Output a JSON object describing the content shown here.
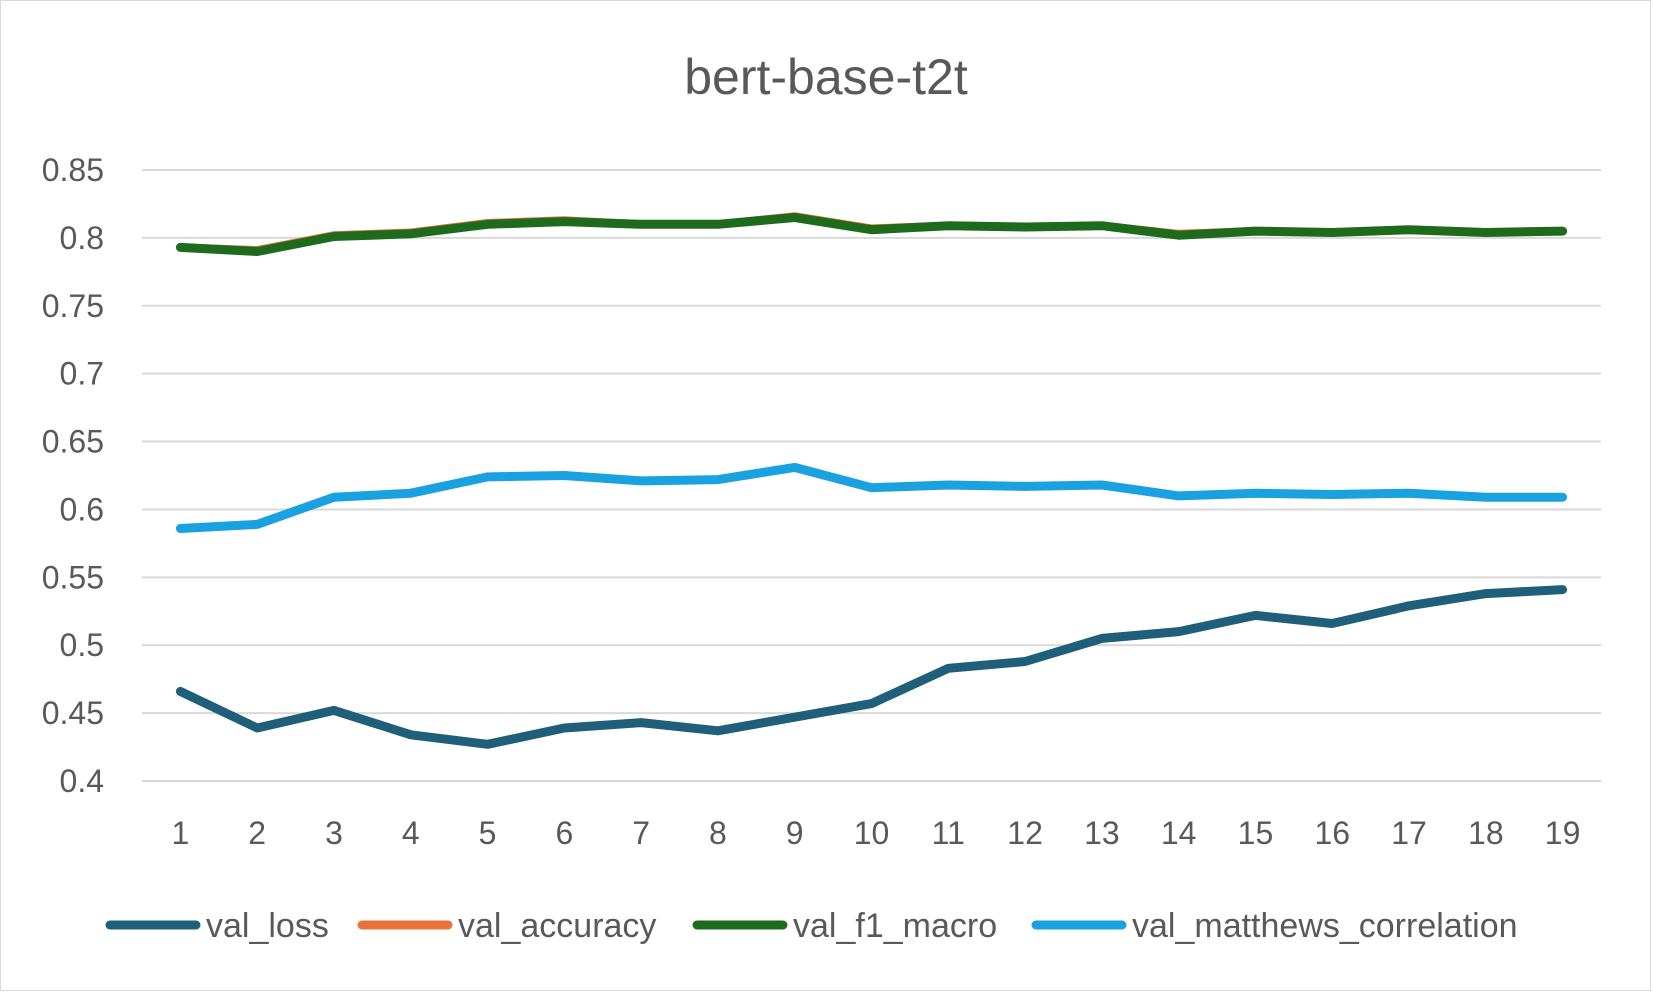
{
  "chart_data": {
    "type": "line",
    "title": "bert-base-t2t",
    "xlabel": "",
    "ylabel": "",
    "categories": [
      "1",
      "2",
      "3",
      "4",
      "5",
      "6",
      "7",
      "8",
      "9",
      "10",
      "11",
      "12",
      "13",
      "14",
      "15",
      "16",
      "17",
      "18",
      "19"
    ],
    "ylim": [
      0.4,
      0.85
    ],
    "yticks": [
      "0.4",
      "0.45",
      "0.5",
      "0.55",
      "0.6",
      "0.65",
      "0.7",
      "0.75",
      "0.8",
      "0.85"
    ],
    "grid": true,
    "legend_position": "bottom",
    "series": [
      {
        "name": "val_loss",
        "color": "#1f5f7a",
        "values": [
          0.466,
          0.439,
          0.452,
          0.434,
          0.427,
          0.439,
          0.443,
          0.437,
          0.447,
          0.457,
          0.483,
          0.488,
          0.505,
          0.51,
          0.522,
          0.516,
          0.529,
          0.538,
          0.541
        ]
      },
      {
        "name": "val_accuracy",
        "color": "#e8743b",
        "values": [
          0.793,
          0.791,
          0.802,
          0.804,
          0.811,
          0.813,
          0.81,
          0.81,
          0.816,
          0.807,
          0.809,
          0.808,
          0.809,
          0.803,
          0.805,
          0.804,
          0.806,
          0.804,
          0.805
        ]
      },
      {
        "name": "val_f1_macro",
        "color": "#1e6b1e",
        "values": [
          0.793,
          0.79,
          0.801,
          0.803,
          0.81,
          0.812,
          0.81,
          0.81,
          0.815,
          0.806,
          0.809,
          0.808,
          0.809,
          0.802,
          0.805,
          0.804,
          0.806,
          0.804,
          0.805
        ]
      },
      {
        "name": "val_matthews_correlation",
        "color": "#1aa1e0",
        "values": [
          0.586,
          0.589,
          0.609,
          0.612,
          0.624,
          0.625,
          0.621,
          0.622,
          0.631,
          0.616,
          0.618,
          0.617,
          0.618,
          0.61,
          0.612,
          0.611,
          0.612,
          0.609,
          0.609
        ]
      }
    ]
  }
}
